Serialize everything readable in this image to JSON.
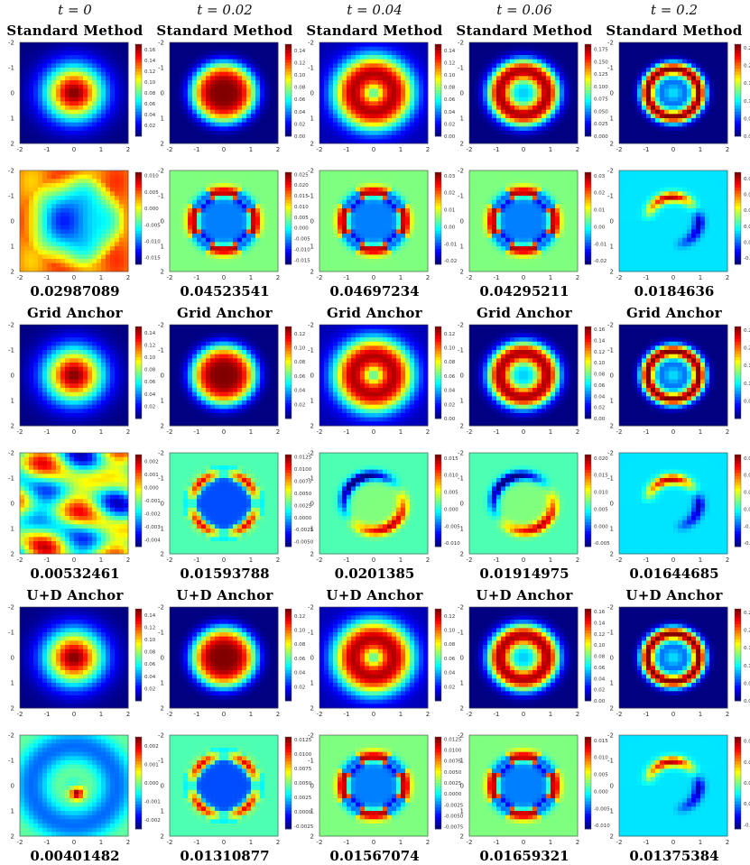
{
  "column_headers": [
    "t = 0",
    "t = 0.02",
    "t = 0.04",
    "t = 0.06",
    "t = 0.2"
  ],
  "blocks": [
    {
      "title": "Standard Method",
      "errors": [
        "0.02987089",
        "0.04523541",
        "0.04697234",
        "0.04295211",
        "0.0184636"
      ]
    },
    {
      "title": "Grid Anchor",
      "errors": [
        "0.00532461",
        "0.01593788",
        "0.0201385",
        "0.01914975",
        "0.01644685"
      ]
    },
    {
      "title": "U+D Anchor",
      "errors": [
        "0.00401482",
        "0.01310877",
        "0.01567074",
        "0.01659321",
        "0.01375384"
      ]
    }
  ],
  "chart_data": {
    "type": "heatmap",
    "colormap": "jet",
    "x_range": [
      -2,
      2
    ],
    "y_range": [
      -2,
      2
    ],
    "y_inverted": true,
    "axis_ticks": [
      -2,
      -1,
      0,
      1,
      2
    ],
    "columns_time": [
      0,
      0.02,
      0.04,
      0.06,
      0.2
    ],
    "panels": [
      {
        "block": "Standard Method",
        "kind": "solution",
        "time": 0,
        "pattern": "blob",
        "cbar_ticks": [
          "0.16",
          "0.14",
          "0.12",
          "0.10",
          "0.08",
          "0.06",
          "0.04",
          "0.02"
        ],
        "cbar_range": [
          0.0,
          0.17
        ]
      },
      {
        "block": "Standard Method",
        "kind": "solution",
        "time": 0.02,
        "pattern": "blob-wide",
        "cbar_ticks": [
          "0.14",
          "0.12",
          "0.10",
          "0.08",
          "0.06",
          "0.04",
          "0.02",
          "0.00"
        ],
        "cbar_range": [
          0.0,
          0.15
        ]
      },
      {
        "block": "Standard Method",
        "kind": "solution",
        "time": 0.04,
        "pattern": "ring-broad",
        "cbar_ticks": [
          "0.14",
          "0.12",
          "0.10",
          "0.08",
          "0.06",
          "0.04",
          "0.02",
          "0.00"
        ],
        "cbar_range": [
          0.0,
          0.15
        ]
      },
      {
        "block": "Standard Method",
        "kind": "solution",
        "time": 0.06,
        "pattern": "ring-mid",
        "cbar_ticks": [
          "0.175",
          "0.150",
          "0.125",
          "0.100",
          "0.075",
          "0.050",
          "0.025",
          "0.000"
        ],
        "cbar_range": [
          0.0,
          0.185
        ]
      },
      {
        "block": "Standard Method",
        "kind": "solution",
        "time": 0.2,
        "pattern": "ring-thin",
        "cbar_ticks": [
          "0.25",
          "0.20",
          "0.15",
          "0.10",
          "0.05",
          "0.00"
        ],
        "cbar_range": [
          0.0,
          0.26
        ]
      },
      {
        "block": "Standard Method",
        "kind": "error",
        "time": 0,
        "pattern": "err-center",
        "cbar_ticks": [
          "0.010",
          "0.005",
          "0.000",
          "-0.005",
          "-0.010",
          "-0.015"
        ],
        "cbar_range": [
          -0.017,
          0.011
        ]
      },
      {
        "block": "Standard Method",
        "kind": "error",
        "time": 0.02,
        "pattern": "err-ring4",
        "cbar_ticks": [
          "0.025",
          "0.020",
          "0.015",
          "0.010",
          "0.005",
          "0.000",
          "-0.005",
          "-0.010",
          "-0.015"
        ],
        "cbar_range": [
          -0.017,
          0.026
        ]
      },
      {
        "block": "Standard Method",
        "kind": "error",
        "time": 0.04,
        "pattern": "err-ring4",
        "cbar_ticks": [
          "0.03",
          "0.02",
          "0.01",
          "0.00",
          "-0.01",
          "-0.02"
        ],
        "cbar_range": [
          -0.022,
          0.032
        ]
      },
      {
        "block": "Standard Method",
        "kind": "error",
        "time": 0.06,
        "pattern": "err-ring4",
        "cbar_ticks": [
          "0.03",
          "0.02",
          "0.01",
          "0.00",
          "-0.01",
          "-0.02"
        ],
        "cbar_range": [
          -0.022,
          0.032
        ]
      },
      {
        "block": "Standard Method",
        "kind": "error",
        "time": 0.2,
        "pattern": "err-arc",
        "cbar_ticks": [
          "0.020",
          "0.015",
          "0.010",
          "0.005",
          "0.000",
          "-0.005"
        ],
        "cbar_range": [
          -0.007,
          0.022
        ]
      },
      {
        "block": "Grid Anchor",
        "kind": "solution",
        "time": 0,
        "pattern": "blob",
        "cbar_ticks": [
          "0.14",
          "0.12",
          "0.10",
          "0.08",
          "0.06",
          "0.04",
          "0.02"
        ],
        "cbar_range": [
          0.0,
          0.15
        ]
      },
      {
        "block": "Grid Anchor",
        "kind": "solution",
        "time": 0.02,
        "pattern": "blob-wide",
        "cbar_ticks": [
          "0.12",
          "0.10",
          "0.08",
          "0.06",
          "0.04",
          "0.02"
        ],
        "cbar_range": [
          0.0,
          0.13
        ]
      },
      {
        "block": "Grid Anchor",
        "kind": "solution",
        "time": 0.04,
        "pattern": "ring-broad",
        "cbar_ticks": [
          "0.12",
          "0.10",
          "0.08",
          "0.06",
          "0.04",
          "0.02",
          "0.00"
        ],
        "cbar_range": [
          0.0,
          0.13
        ]
      },
      {
        "block": "Grid Anchor",
        "kind": "solution",
        "time": 0.06,
        "pattern": "ring-mid",
        "cbar_ticks": [
          "0.16",
          "0.14",
          "0.12",
          "0.10",
          "0.08",
          "0.06",
          "0.04",
          "0.02",
          "0.00"
        ],
        "cbar_range": [
          0.0,
          0.165
        ]
      },
      {
        "block": "Grid Anchor",
        "kind": "solution",
        "time": 0.2,
        "pattern": "ring-thin",
        "cbar_ticks": [
          "0.25",
          "0.20",
          "0.15",
          "0.10",
          "0.05"
        ],
        "cbar_range": [
          0.0,
          0.26
        ]
      },
      {
        "block": "Grid Anchor",
        "kind": "error",
        "time": 0,
        "pattern": "err-patchy",
        "cbar_ticks": [
          "0.002",
          "0.001",
          "0.000",
          "-0.001",
          "-0.002",
          "-0.003",
          "-0.004"
        ],
        "cbar_range": [
          -0.0045,
          0.0025
        ]
      },
      {
        "block": "Grid Anchor",
        "kind": "error",
        "time": 0.02,
        "pattern": "err-ring4-low",
        "cbar_ticks": [
          "0.0125",
          "0.0100",
          "0.0075",
          "0.0050",
          "0.0025",
          "0.0000",
          "-0.0025",
          "-0.0050"
        ],
        "cbar_range": [
          -0.006,
          0.013
        ]
      },
      {
        "block": "Grid Anchor",
        "kind": "error",
        "time": 0.04,
        "pattern": "err-ring2",
        "cbar_ticks": [
          "0.015",
          "0.010",
          "0.005",
          "0.000",
          "-0.005",
          "-0.010"
        ],
        "cbar_range": [
          -0.011,
          0.016
        ]
      },
      {
        "block": "Grid Anchor",
        "kind": "error",
        "time": 0.06,
        "pattern": "err-ring2",
        "cbar_ticks": [
          "0.020",
          "0.015",
          "0.010",
          "0.005",
          "0.000",
          "-0.005"
        ],
        "cbar_range": [
          -0.006,
          0.021
        ]
      },
      {
        "block": "Grid Anchor",
        "kind": "error",
        "time": 0.2,
        "pattern": "err-arc",
        "cbar_ticks": [
          "0.015",
          "0.010",
          "0.005",
          "0.000",
          "-0.005",
          "-0.010"
        ],
        "cbar_range": [
          -0.011,
          0.016
        ]
      },
      {
        "block": "U+D Anchor",
        "kind": "solution",
        "time": 0,
        "pattern": "blob",
        "cbar_ticks": [
          "0.14",
          "0.12",
          "0.10",
          "0.08",
          "0.06",
          "0.04",
          "0.02"
        ],
        "cbar_range": [
          0.0,
          0.15
        ]
      },
      {
        "block": "U+D Anchor",
        "kind": "solution",
        "time": 0.02,
        "pattern": "blob-wide",
        "cbar_ticks": [
          "0.12",
          "0.10",
          "0.08",
          "0.06",
          "0.04",
          "0.02"
        ],
        "cbar_range": [
          0.0,
          0.13
        ]
      },
      {
        "block": "U+D Anchor",
        "kind": "solution",
        "time": 0.04,
        "pattern": "ring-broad",
        "cbar_ticks": [
          "0.12",
          "0.10",
          "0.08",
          "0.06",
          "0.04",
          "0.02"
        ],
        "cbar_range": [
          0.0,
          0.13
        ]
      },
      {
        "block": "U+D Anchor",
        "kind": "solution",
        "time": 0.06,
        "pattern": "ring-mid",
        "cbar_ticks": [
          "0.16",
          "0.14",
          "0.12",
          "0.10",
          "0.08",
          "0.06",
          "0.04",
          "0.02",
          "0.00"
        ],
        "cbar_range": [
          0.0,
          0.165
        ]
      },
      {
        "block": "U+D Anchor",
        "kind": "solution",
        "time": 0.2,
        "pattern": "ring-thin",
        "cbar_ticks": [
          "0.25",
          "0.20",
          "0.15",
          "0.10",
          "0.05",
          "0.00"
        ],
        "cbar_range": [
          0.0,
          0.26
        ]
      },
      {
        "block": "U+D Anchor",
        "kind": "error",
        "time": 0,
        "pattern": "err-dot",
        "cbar_ticks": [
          "0.002",
          "0.001",
          "0.000",
          "-0.001",
          "-0.002"
        ],
        "cbar_range": [
          -0.0025,
          0.0025
        ]
      },
      {
        "block": "U+D Anchor",
        "kind": "error",
        "time": 0.02,
        "pattern": "err-ring4-low",
        "cbar_ticks": [
          "0.0125",
          "0.0100",
          "0.0075",
          "0.0050",
          "0.0025",
          "0.0000",
          "-0.0025"
        ],
        "cbar_range": [
          -0.003,
          0.013
        ]
      },
      {
        "block": "U+D Anchor",
        "kind": "error",
        "time": 0.04,
        "pattern": "err-ring4",
        "cbar_ticks": [
          "0.0125",
          "0.0100",
          "0.0075",
          "0.0050",
          "0.0025",
          "0.0000",
          "-0.0025",
          "-0.0050",
          "-0.0075"
        ],
        "cbar_range": [
          -0.008,
          0.013
        ]
      },
      {
        "block": "U+D Anchor",
        "kind": "error",
        "time": 0.06,
        "pattern": "err-ring4",
        "cbar_ticks": [
          "0.015",
          "0.010",
          "0.005",
          "0.000",
          "-0.005",
          "-0.010"
        ],
        "cbar_range": [
          -0.011,
          0.016
        ]
      },
      {
        "block": "U+D Anchor",
        "kind": "error",
        "time": 0.2,
        "pattern": "err-arc",
        "cbar_ticks": [
          "0.015",
          "0.010",
          "0.005",
          "0.000",
          "-0.005"
        ],
        "cbar_range": [
          -0.006,
          0.016
        ]
      }
    ]
  }
}
